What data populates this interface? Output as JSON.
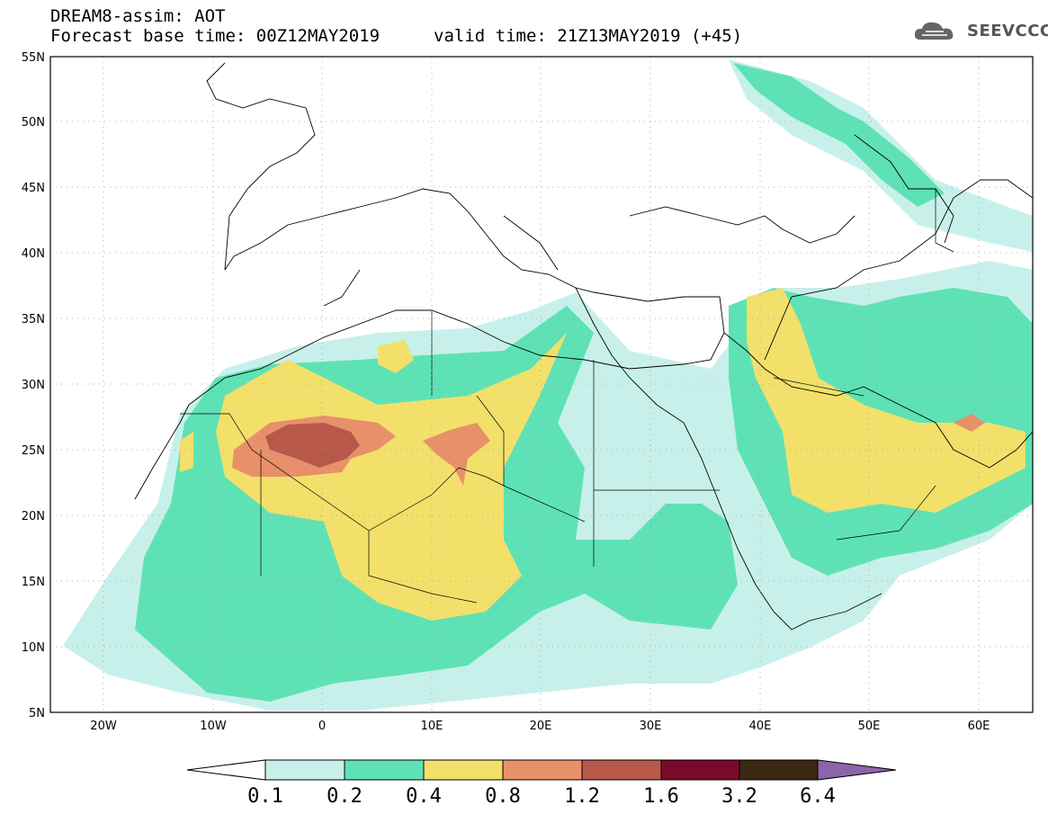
{
  "header": {
    "line1": "DREAM8-assim: AOT",
    "line2": "Forecast base time: 00Z12MAY2019",
    "line3": "valid time: 21Z13MAY2019 (+45)",
    "logo": "SEEVCCC"
  },
  "map": {
    "lat_labels": [
      "55N",
      "50N",
      "45N",
      "40N",
      "35N",
      "30N",
      "25N",
      "20N",
      "15N",
      "10N",
      "5N"
    ],
    "lon_labels": [
      "20W",
      "10W",
      "0",
      "10E",
      "20E",
      "30E",
      "40E",
      "50E",
      "60E"
    ]
  },
  "colorbar": {
    "ticks": [
      "0.1",
      "0.2",
      "0.4",
      "0.8",
      "1.2",
      "1.6",
      "3.2",
      "6.4"
    ],
    "colors": [
      "#c8f0ea",
      "#5ee2b5",
      "#f2e06a",
      "#e8906a",
      "#b8584a",
      "#7a0a2a",
      "#3d2814",
      "#8c64aa"
    ]
  },
  "icons": {
    "logo": "cloud-icon"
  }
}
